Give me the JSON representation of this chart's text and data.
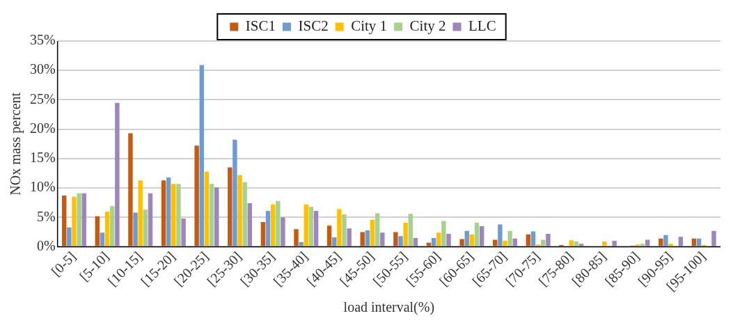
{
  "chart_data": {
    "type": "bar",
    "xlabel": "load interval(%)",
    "ylabel": "NOx mass percent",
    "categories": [
      "[0-5]",
      "[5-10]",
      "[10-15]",
      "[15-20]",
      "[20-25]",
      "[25-30]",
      "[30-35]",
      "[35-40]",
      "[40-45]",
      "[45-50]",
      "[50-55]",
      "[55-60]",
      "[60-65]",
      "[65-70]",
      "[70-75]",
      "[75-80]",
      "[80-85]",
      "[85-90]",
      "[90-95]",
      "[95-100]"
    ],
    "series": [
      {
        "name": "ISC1",
        "color": "#c55a11",
        "values": [
          8.7,
          5.2,
          19.3,
          11.3,
          17.2,
          13.5,
          4.2,
          3.0,
          3.6,
          2.5,
          2.5,
          0.7,
          1.3,
          1.2,
          2.1,
          0.3,
          0,
          0,
          1.4,
          1.4
        ]
      },
      {
        "name": "ISC2",
        "color": "#6f9bd1",
        "values": [
          3.3,
          2.4,
          5.8,
          11.8,
          30.9,
          18.2,
          6.1,
          0.8,
          1.6,
          2.8,
          1.8,
          1.5,
          2.7,
          3.8,
          2.6,
          0,
          0,
          0.2,
          2.0,
          1.4
        ]
      },
      {
        "name": "City 1",
        "color": "#ffc000",
        "values": [
          8.5,
          6.0,
          11.3,
          10.7,
          12.8,
          12.2,
          7.2,
          7.2,
          6.4,
          4.6,
          4.1,
          2.4,
          2.1,
          1.0,
          0.4,
          1.1,
          0.9,
          0.4,
          0.5,
          0.3
        ]
      },
      {
        "name": "City 2",
        "color": "#a9d18e",
        "values": [
          9.1,
          6.9,
          6.3,
          10.7,
          10.7,
          11.0,
          7.8,
          6.8,
          5.5,
          5.7,
          5.6,
          4.4,
          4.1,
          2.7,
          1.2,
          0.9,
          0,
          0.5,
          0,
          0
        ]
      },
      {
        "name": "LLC",
        "color": "#9e85bb",
        "values": [
          9.1,
          24.5,
          9.1,
          4.8,
          10.1,
          7.4,
          5.0,
          6.1,
          3.1,
          2.4,
          1.5,
          2.2,
          3.5,
          1.4,
          2.2,
          0.5,
          1.0,
          1.2,
          1.7,
          2.7
        ]
      }
    ],
    "ylim": [
      0,
      35
    ],
    "yticks": [
      {
        "value": 0,
        "label": "0%"
      },
      {
        "value": 5,
        "label": "5%"
      },
      {
        "value": 10,
        "label": "10%"
      },
      {
        "value": 15,
        "label": "15%"
      },
      {
        "value": 20,
        "label": "20%"
      },
      {
        "value": 25,
        "label": "25%"
      },
      {
        "value": 30,
        "label": "30%"
      },
      {
        "value": 35,
        "label": "35%"
      }
    ],
    "grid": "y",
    "legend": "top"
  }
}
